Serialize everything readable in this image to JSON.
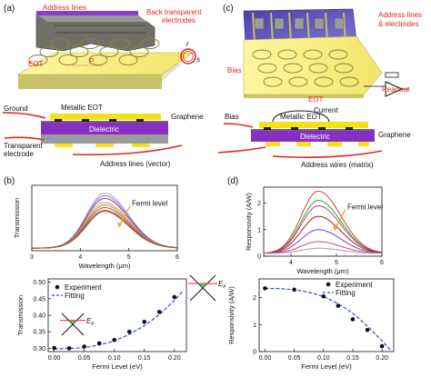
{
  "panels": {
    "a": {
      "label": "(a)",
      "labels": {
        "address_lines": "Address lines",
        "back_electrodes_1": "Back transparent",
        "back_electrodes_2": "electrodes",
        "eot": "EOT",
        "p": "P",
        "r": "r",
        "s": "s",
        "ground": "Ground",
        "metallic_eot": "Metallic EOT",
        "graphene": "Graphene",
        "dielectric": "Dielectric",
        "transparent_1": "Transparent",
        "transparent_2": "electrode",
        "address_vector": "Address lines (vector)"
      }
    },
    "c": {
      "label": "(c)",
      "labels": {
        "address_1": "Address lines",
        "address_2": "& electrodes",
        "bias_top": "Bias",
        "eot": "EOT",
        "readout": "Readout",
        "bias": "Bias",
        "current": "Current",
        "metallic_eot": "Metallic EOT",
        "graphene": "Graphene",
        "dielectric": "Dielectric",
        "address_matrix": "Address wires (matrix)"
      }
    },
    "b": {
      "label": "(b)"
    },
    "d": {
      "label": "(d)"
    }
  },
  "chart_data": [
    {
      "type": "line",
      "ylabel": "Transmission",
      "xlabel": "Wavelength (μm)",
      "xlim": [
        3,
        6
      ],
      "ylim": [
        0,
        0.5
      ],
      "xticks": [
        "3",
        "4",
        "5",
        "6"
      ],
      "annotation": "Fermi level",
      "series_colors": [
        "#b8a0d8",
        "#a070c0",
        "#7050a0",
        "#d0a060",
        "#c08040",
        "#a06030",
        "#d04040",
        "#806040"
      ],
      "peak_x": 4.5,
      "series": [
        {
          "values_peak": 0.44
        },
        {
          "values_peak": 0.42
        },
        {
          "values_peak": 0.4
        },
        {
          "values_peak": 0.37
        },
        {
          "values_peak": 0.35
        },
        {
          "values_peak": 0.33
        },
        {
          "values_peak": 0.31
        },
        {
          "values_peak": 0.3
        }
      ]
    },
    {
      "type": "scatter",
      "xlabel": "Fermi Level (eV)",
      "ylabel": "Transmission",
      "xlim": [
        -0.01,
        0.22
      ],
      "ylim": [
        0.29,
        0.51
      ],
      "xticks": [
        "0.00",
        "0.05",
        "0.10",
        "0.15",
        "0.20"
      ],
      "yticks": [
        "0.30",
        "0.35",
        "0.40",
        "0.45",
        "0.50"
      ],
      "legend": [
        "Experiment",
        "Fitting"
      ],
      "annotation_ef": "E",
      "annotation_ef_sub": "F",
      "series": [
        {
          "name": "Experiment",
          "x": [
            0.0,
            0.025,
            0.05,
            0.075,
            0.1,
            0.125,
            0.15,
            0.175,
            0.2
          ],
          "y": [
            0.301,
            0.3,
            0.305,
            0.315,
            0.325,
            0.35,
            0.38,
            0.41,
            0.455
          ]
        },
        {
          "name": "Fitting",
          "x": [
            0.0,
            0.025,
            0.05,
            0.075,
            0.1,
            0.125,
            0.15,
            0.175,
            0.2,
            0.215
          ],
          "y": [
            0.298,
            0.299,
            0.302,
            0.31,
            0.322,
            0.342,
            0.368,
            0.402,
            0.445,
            0.475
          ]
        }
      ]
    },
    {
      "type": "line",
      "ylabel": "Responsivity (A/W)",
      "xlabel": "Wavelength (μm)",
      "xlim": [
        3.4,
        6
      ],
      "ylim": [
        0,
        2.6
      ],
      "xticks": [
        "4",
        "5",
        "6"
      ],
      "yticks": [
        "0",
        "1",
        "2"
      ],
      "annotation": "Fermi level",
      "series_colors": [
        "#d04040",
        "#20b020",
        "#c04080",
        "#b01818",
        "#8040a0",
        "#a06070",
        "#d080c0"
      ],
      "peak_x": 4.6,
      "series": [
        {
          "values_peak": 2.45
        },
        {
          "values_peak": 2.1
        },
        {
          "values_peak": 1.9
        },
        {
          "values_peak": 1.5
        },
        {
          "values_peak": 1.0
        },
        {
          "values_peak": 0.55
        },
        {
          "values_peak": 0.3
        }
      ]
    },
    {
      "type": "scatter",
      "xlabel": "Fermi Level (eV)",
      "ylabel": "Responsivity (A/W)",
      "xlim": [
        -0.01,
        0.22
      ],
      "ylim": [
        0,
        2.7
      ],
      "xticks": [
        "0.00",
        "0.05",
        "0.10",
        "0.15",
        "0.20"
      ],
      "yticks": [
        "0",
        "1",
        "2"
      ],
      "legend": [
        "Experiment",
        "Fitting"
      ],
      "series": [
        {
          "name": "Experiment",
          "x": [
            0.0,
            0.05,
            0.1,
            0.125,
            0.15,
            0.175,
            0.2
          ],
          "y": [
            2.35,
            2.3,
            2.05,
            1.7,
            1.2,
            0.8,
            0.2
          ]
        },
        {
          "name": "Fitting",
          "x": [
            0.0,
            0.025,
            0.05,
            0.075,
            0.1,
            0.125,
            0.15,
            0.175,
            0.2,
            0.215
          ],
          "y": [
            2.35,
            2.34,
            2.3,
            2.2,
            2.05,
            1.78,
            1.42,
            0.95,
            0.4,
            0.05
          ]
        }
      ]
    }
  ]
}
